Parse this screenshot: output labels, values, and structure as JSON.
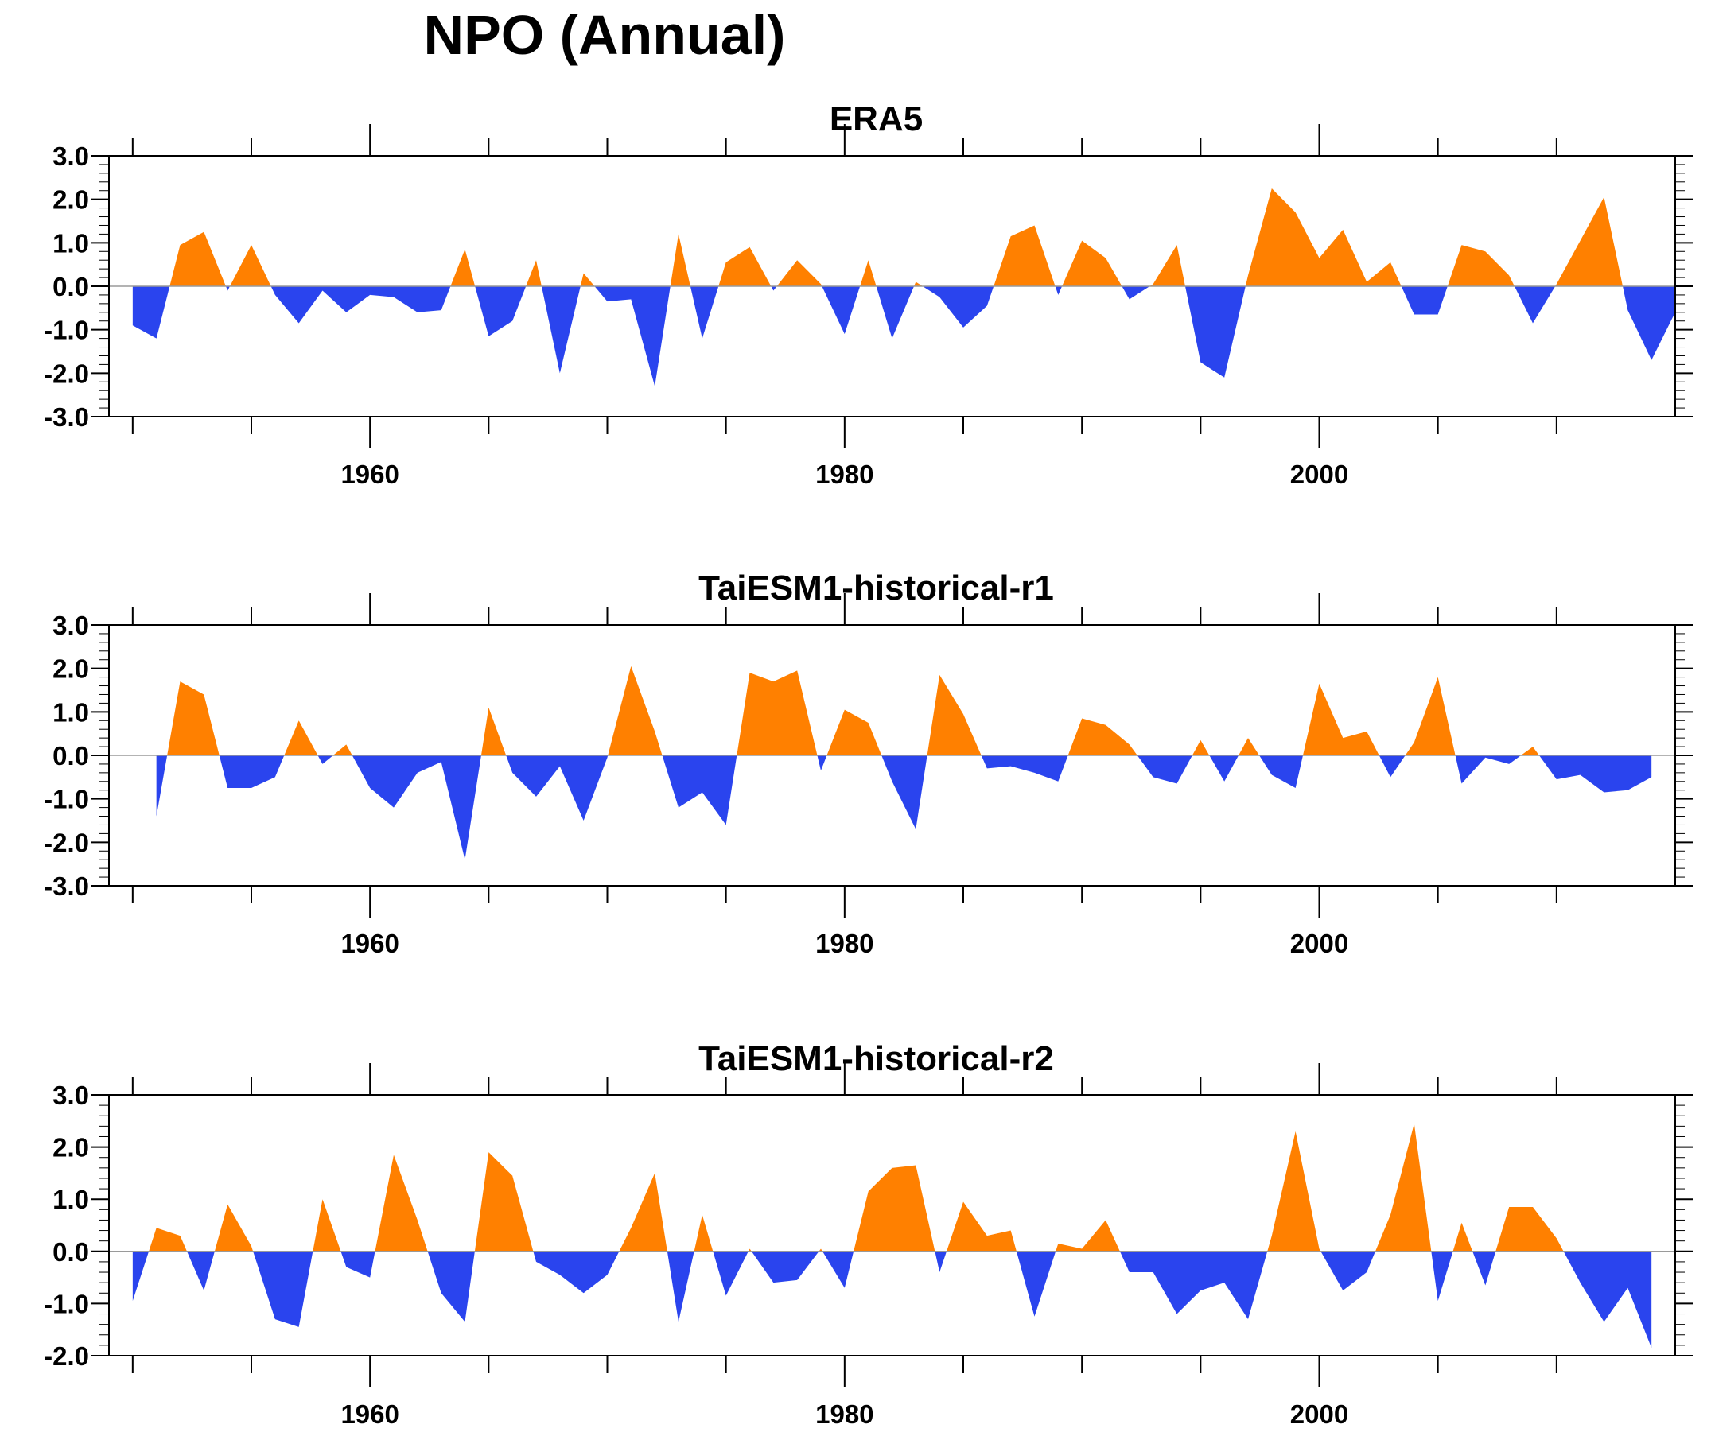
{
  "title": "NPO (Annual)",
  "colors": {
    "positive": "#ff8000",
    "negative": "#2a44ee",
    "axis": "#000000",
    "zero_line": "#9a9a9a"
  },
  "chart_data": [
    {
      "type": "area",
      "title": "ERA5",
      "xlabel": "",
      "ylabel": "",
      "xlim": [
        1949,
        2015
      ],
      "ylim": [
        -3,
        3
      ],
      "yticks": [
        -3,
        -2,
        -1,
        0,
        1,
        2,
        3
      ],
      "ytick_labels": [
        "-3.0",
        "-2.0",
        "-1.0",
        "0.0",
        "1.0",
        "2.0",
        "3.0"
      ],
      "xticks": [
        1960,
        1980,
        2000
      ],
      "xtick_labels": [
        "1960",
        "1980",
        "2000"
      ],
      "grid": false,
      "x_start": 1950,
      "x_step": 1,
      "values": [
        -0.9,
        -1.2,
        0.95,
        1.25,
        -0.1,
        0.95,
        -0.2,
        -0.85,
        -0.1,
        -0.6,
        -0.2,
        -0.25,
        -0.6,
        -0.55,
        0.85,
        -1.15,
        -0.8,
        0.6,
        -2.0,
        0.3,
        -0.35,
        -0.3,
        -2.3,
        1.2,
        -1.2,
        0.55,
        0.9,
        -0.1,
        0.6,
        0.05,
        -1.1,
        0.6,
        -1.2,
        0.1,
        -0.25,
        -0.95,
        -0.45,
        1.15,
        1.4,
        -0.2,
        1.05,
        0.65,
        -0.3,
        0.05,
        0.95,
        -1.75,
        -2.1,
        0.25,
        2.25,
        1.7,
        0.65,
        1.3,
        0.1,
        0.55,
        -0.65,
        -0.65,
        0.95,
        0.8,
        0.25,
        -0.85,
        0.05,
        1.05,
        2.05,
        -0.55,
        -1.7,
        -0.6
      ]
    },
    {
      "type": "area",
      "title": "TaiESM1-historical-r1",
      "xlabel": "",
      "ylabel": "",
      "xlim": [
        1949,
        2015
      ],
      "ylim": [
        -3,
        3
      ],
      "yticks": [
        -3,
        -2,
        -1,
        0,
        1,
        2,
        3
      ],
      "ytick_labels": [
        "-3.0",
        "-2.0",
        "-1.0",
        "0.0",
        "1.0",
        "2.0",
        "3.0"
      ],
      "xticks": [
        1960,
        1980,
        2000
      ],
      "xtick_labels": [
        "1960",
        "1980",
        "2000"
      ],
      "grid": false,
      "x_start": 1950,
      "x_step": 1,
      "values": [
        0.0,
        -1.4,
        1.7,
        1.4,
        -0.75,
        -0.75,
        -0.5,
        0.8,
        -0.2,
        0.25,
        -0.75,
        -1.2,
        -0.4,
        -0.15,
        -2.4,
        1.1,
        -0.4,
        -0.95,
        -0.25,
        -1.5,
        -0.05,
        2.05,
        0.55,
        -1.2,
        -0.85,
        -1.6,
        1.9,
        1.7,
        1.95,
        -0.35,
        1.05,
        0.75,
        -0.6,
        -1.7,
        1.85,
        0.95,
        -0.3,
        -0.25,
        -0.4,
        -0.6,
        0.85,
        0.7,
        0.25,
        -0.5,
        -0.65,
        0.35,
        -0.6,
        0.4,
        -0.45,
        -0.75,
        1.65,
        0.4,
        0.55,
        -0.5,
        0.3,
        1.8,
        -0.65,
        -0.05,
        -0.2,
        0.2,
        -0.55,
        -0.45,
        -0.85,
        -0.8,
        -0.5
      ]
    },
    {
      "type": "area",
      "title": "TaiESM1-historical-r2",
      "xlabel": "",
      "ylabel": "",
      "xlim": [
        1949,
        2015
      ],
      "ylim": [
        -2,
        3
      ],
      "yticks": [
        -2,
        -1,
        0,
        1,
        2,
        3
      ],
      "ytick_labels": [
        "-2.0",
        "-1.0",
        "0.0",
        "1.0",
        "2.0",
        "3.0"
      ],
      "xticks": [
        1960,
        1980,
        2000
      ],
      "xtick_labels": [
        "1960",
        "1980",
        "2000"
      ],
      "grid": false,
      "x_start": 1950,
      "x_step": 1,
      "values": [
        -0.95,
        0.45,
        0.3,
        -0.75,
        0.9,
        0.1,
        -1.3,
        -1.45,
        1.0,
        -0.3,
        -0.5,
        1.85,
        0.6,
        -0.8,
        -1.35,
        1.9,
        1.45,
        -0.2,
        -0.45,
        -0.8,
        -0.45,
        0.45,
        1.5,
        -1.35,
        0.7,
        -0.85,
        0.05,
        -0.6,
        -0.55,
        0.05,
        -0.7,
        1.15,
        1.6,
        1.65,
        -0.4,
        0.95,
        0.3,
        0.4,
        -1.25,
        0.15,
        0.05,
        0.6,
        -0.4,
        -0.4,
        -1.2,
        -0.75,
        -0.6,
        -1.3,
        0.3,
        2.3,
        0.05,
        -0.75,
        -0.4,
        0.7,
        2.45,
        -0.95,
        0.55,
        -0.65,
        0.85,
        0.85,
        0.25,
        -0.6,
        -1.35,
        -0.7,
        -1.85
      ]
    }
  ]
}
